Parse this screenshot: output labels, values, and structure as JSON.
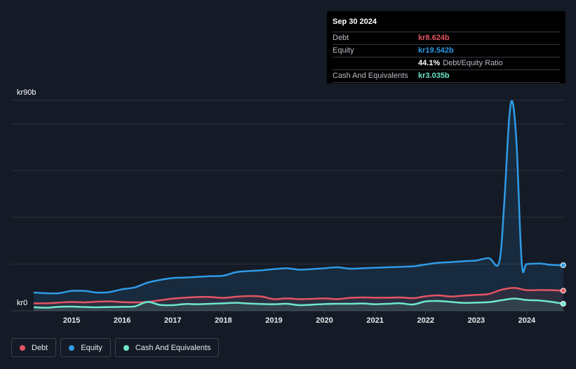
{
  "tooltip": {
    "date": "Sep 30 2024",
    "rows": [
      {
        "label": "Debt",
        "value": "kr8.624b",
        "color": "#e45563"
      },
      {
        "label": "Equity",
        "value": "kr19.542b",
        "color": "#2e9be6"
      },
      {
        "label": "",
        "value": "44.1%",
        "note": "Debt/Equity Ratio",
        "color": "#ffffff"
      },
      {
        "label": "Cash And Equivalents",
        "value": "kr3.035b",
        "color": "#6ee7cc"
      }
    ]
  },
  "legend": [
    {
      "label": "Debt",
      "color": "#e45563"
    },
    {
      "label": "Equity",
      "color": "#2e9be6"
    },
    {
      "label": "Cash And Equivalents",
      "color": "#6ee7cc"
    }
  ],
  "chart_data": {
    "type": "line",
    "title": "",
    "y_max_label": "kr90b",
    "y_min_label": "kr0",
    "ylim": [
      0,
      90
    ],
    "xlim": [
      2014.25,
      2024.75
    ],
    "x_ticks": [
      "2015",
      "2016",
      "2017",
      "2018",
      "2019",
      "2020",
      "2021",
      "2022",
      "2023",
      "2024"
    ],
    "x_tick_values": [
      2015,
      2016,
      2017,
      2018,
      2019,
      2020,
      2021,
      2022,
      2023,
      2024
    ],
    "series": [
      {
        "name": "Equity",
        "color": "#2e9be6",
        "points": [
          [
            2014.25,
            7.8
          ],
          [
            2014.5,
            7.5
          ],
          [
            2014.75,
            7.5
          ],
          [
            2015.0,
            8.5
          ],
          [
            2015.25,
            8.5
          ],
          [
            2015.5,
            7.8
          ],
          [
            2015.75,
            8.0
          ],
          [
            2016.0,
            9.2
          ],
          [
            2016.25,
            10.0
          ],
          [
            2016.5,
            12.0
          ],
          [
            2016.75,
            13.2
          ],
          [
            2017.0,
            14.0
          ],
          [
            2017.25,
            14.2
          ],
          [
            2017.5,
            14.5
          ],
          [
            2017.75,
            14.8
          ],
          [
            2018.0,
            15.0
          ],
          [
            2018.25,
            16.5
          ],
          [
            2018.5,
            17.0
          ],
          [
            2018.75,
            17.3
          ],
          [
            2019.0,
            17.8
          ],
          [
            2019.25,
            18.2
          ],
          [
            2019.5,
            17.6
          ],
          [
            2019.75,
            17.8
          ],
          [
            2020.0,
            18.2
          ],
          [
            2020.25,
            18.6
          ],
          [
            2020.5,
            18.0
          ],
          [
            2020.75,
            18.2
          ],
          [
            2021.0,
            18.4
          ],
          [
            2021.25,
            18.6
          ],
          [
            2021.5,
            18.8
          ],
          [
            2021.75,
            19.0
          ],
          [
            2022.0,
            19.8
          ],
          [
            2022.25,
            20.5
          ],
          [
            2022.5,
            20.8
          ],
          [
            2022.75,
            21.2
          ],
          [
            2023.0,
            21.5
          ],
          [
            2023.25,
            22.5
          ],
          [
            2023.45,
            20.5
          ],
          [
            2023.55,
            45.0
          ],
          [
            2023.65,
            82.0
          ],
          [
            2023.72,
            89.0
          ],
          [
            2023.8,
            70.0
          ],
          [
            2023.9,
            20.2
          ],
          [
            2024.0,
            20.0
          ],
          [
            2024.25,
            20.2
          ],
          [
            2024.5,
            19.6
          ],
          [
            2024.72,
            19.5
          ]
        ]
      },
      {
        "name": "Debt",
        "color": "#e45563",
        "points": [
          [
            2014.25,
            3.2
          ],
          [
            2014.5,
            3.2
          ],
          [
            2014.75,
            3.5
          ],
          [
            2015.0,
            3.8
          ],
          [
            2015.25,
            3.6
          ],
          [
            2015.5,
            3.9
          ],
          [
            2015.75,
            4.0
          ],
          [
            2016.0,
            3.7
          ],
          [
            2016.25,
            3.6
          ],
          [
            2016.5,
            3.8
          ],
          [
            2016.75,
            4.5
          ],
          [
            2017.0,
            5.2
          ],
          [
            2017.25,
            5.6
          ],
          [
            2017.5,
            5.9
          ],
          [
            2017.75,
            5.9
          ],
          [
            2018.0,
            5.5
          ],
          [
            2018.25,
            6.0
          ],
          [
            2018.5,
            6.3
          ],
          [
            2018.75,
            6.1
          ],
          [
            2019.0,
            5.0
          ],
          [
            2019.25,
            5.3
          ],
          [
            2019.5,
            5.0
          ],
          [
            2019.75,
            5.1
          ],
          [
            2020.0,
            5.3
          ],
          [
            2020.25,
            5.0
          ],
          [
            2020.5,
            5.5
          ],
          [
            2020.75,
            5.7
          ],
          [
            2021.0,
            5.6
          ],
          [
            2021.25,
            5.6
          ],
          [
            2021.5,
            5.7
          ],
          [
            2021.75,
            5.4
          ],
          [
            2022.0,
            6.2
          ],
          [
            2022.25,
            6.6
          ],
          [
            2022.5,
            6.1
          ],
          [
            2022.75,
            6.5
          ],
          [
            2023.0,
            6.8
          ],
          [
            2023.25,
            7.2
          ],
          [
            2023.5,
            9.0
          ],
          [
            2023.75,
            9.8
          ],
          [
            2024.0,
            8.8
          ],
          [
            2024.25,
            8.9
          ],
          [
            2024.5,
            8.8
          ],
          [
            2024.72,
            8.6
          ]
        ]
      },
      {
        "name": "Cash And Equivalents",
        "color": "#6ee7cc",
        "points": [
          [
            2014.25,
            1.5
          ],
          [
            2014.5,
            1.3
          ],
          [
            2014.75,
            1.7
          ],
          [
            2015.0,
            1.8
          ],
          [
            2015.25,
            1.6
          ],
          [
            2015.5,
            1.5
          ],
          [
            2015.75,
            1.6
          ],
          [
            2016.0,
            1.7
          ],
          [
            2016.25,
            1.9
          ],
          [
            2016.5,
            3.8
          ],
          [
            2016.75,
            2.5
          ],
          [
            2017.0,
            2.4
          ],
          [
            2017.25,
            2.9
          ],
          [
            2017.5,
            2.8
          ],
          [
            2017.75,
            3.0
          ],
          [
            2018.0,
            3.2
          ],
          [
            2018.25,
            3.4
          ],
          [
            2018.5,
            3.1
          ],
          [
            2018.75,
            2.9
          ],
          [
            2019.0,
            2.8
          ],
          [
            2019.25,
            3.0
          ],
          [
            2019.5,
            2.4
          ],
          [
            2019.75,
            2.6
          ],
          [
            2020.0,
            2.9
          ],
          [
            2020.25,
            3.0
          ],
          [
            2020.5,
            3.0
          ],
          [
            2020.75,
            3.1
          ],
          [
            2021.0,
            2.8
          ],
          [
            2021.25,
            3.0
          ],
          [
            2021.5,
            3.2
          ],
          [
            2021.75,
            2.7
          ],
          [
            2022.0,
            4.0
          ],
          [
            2022.25,
            4.2
          ],
          [
            2022.5,
            3.8
          ],
          [
            2022.75,
            3.4
          ],
          [
            2023.0,
            3.5
          ],
          [
            2023.25,
            3.7
          ],
          [
            2023.5,
            4.5
          ],
          [
            2023.75,
            5.2
          ],
          [
            2024.0,
            4.6
          ],
          [
            2024.25,
            4.4
          ],
          [
            2024.5,
            3.8
          ],
          [
            2024.72,
            3.0
          ]
        ]
      }
    ]
  }
}
